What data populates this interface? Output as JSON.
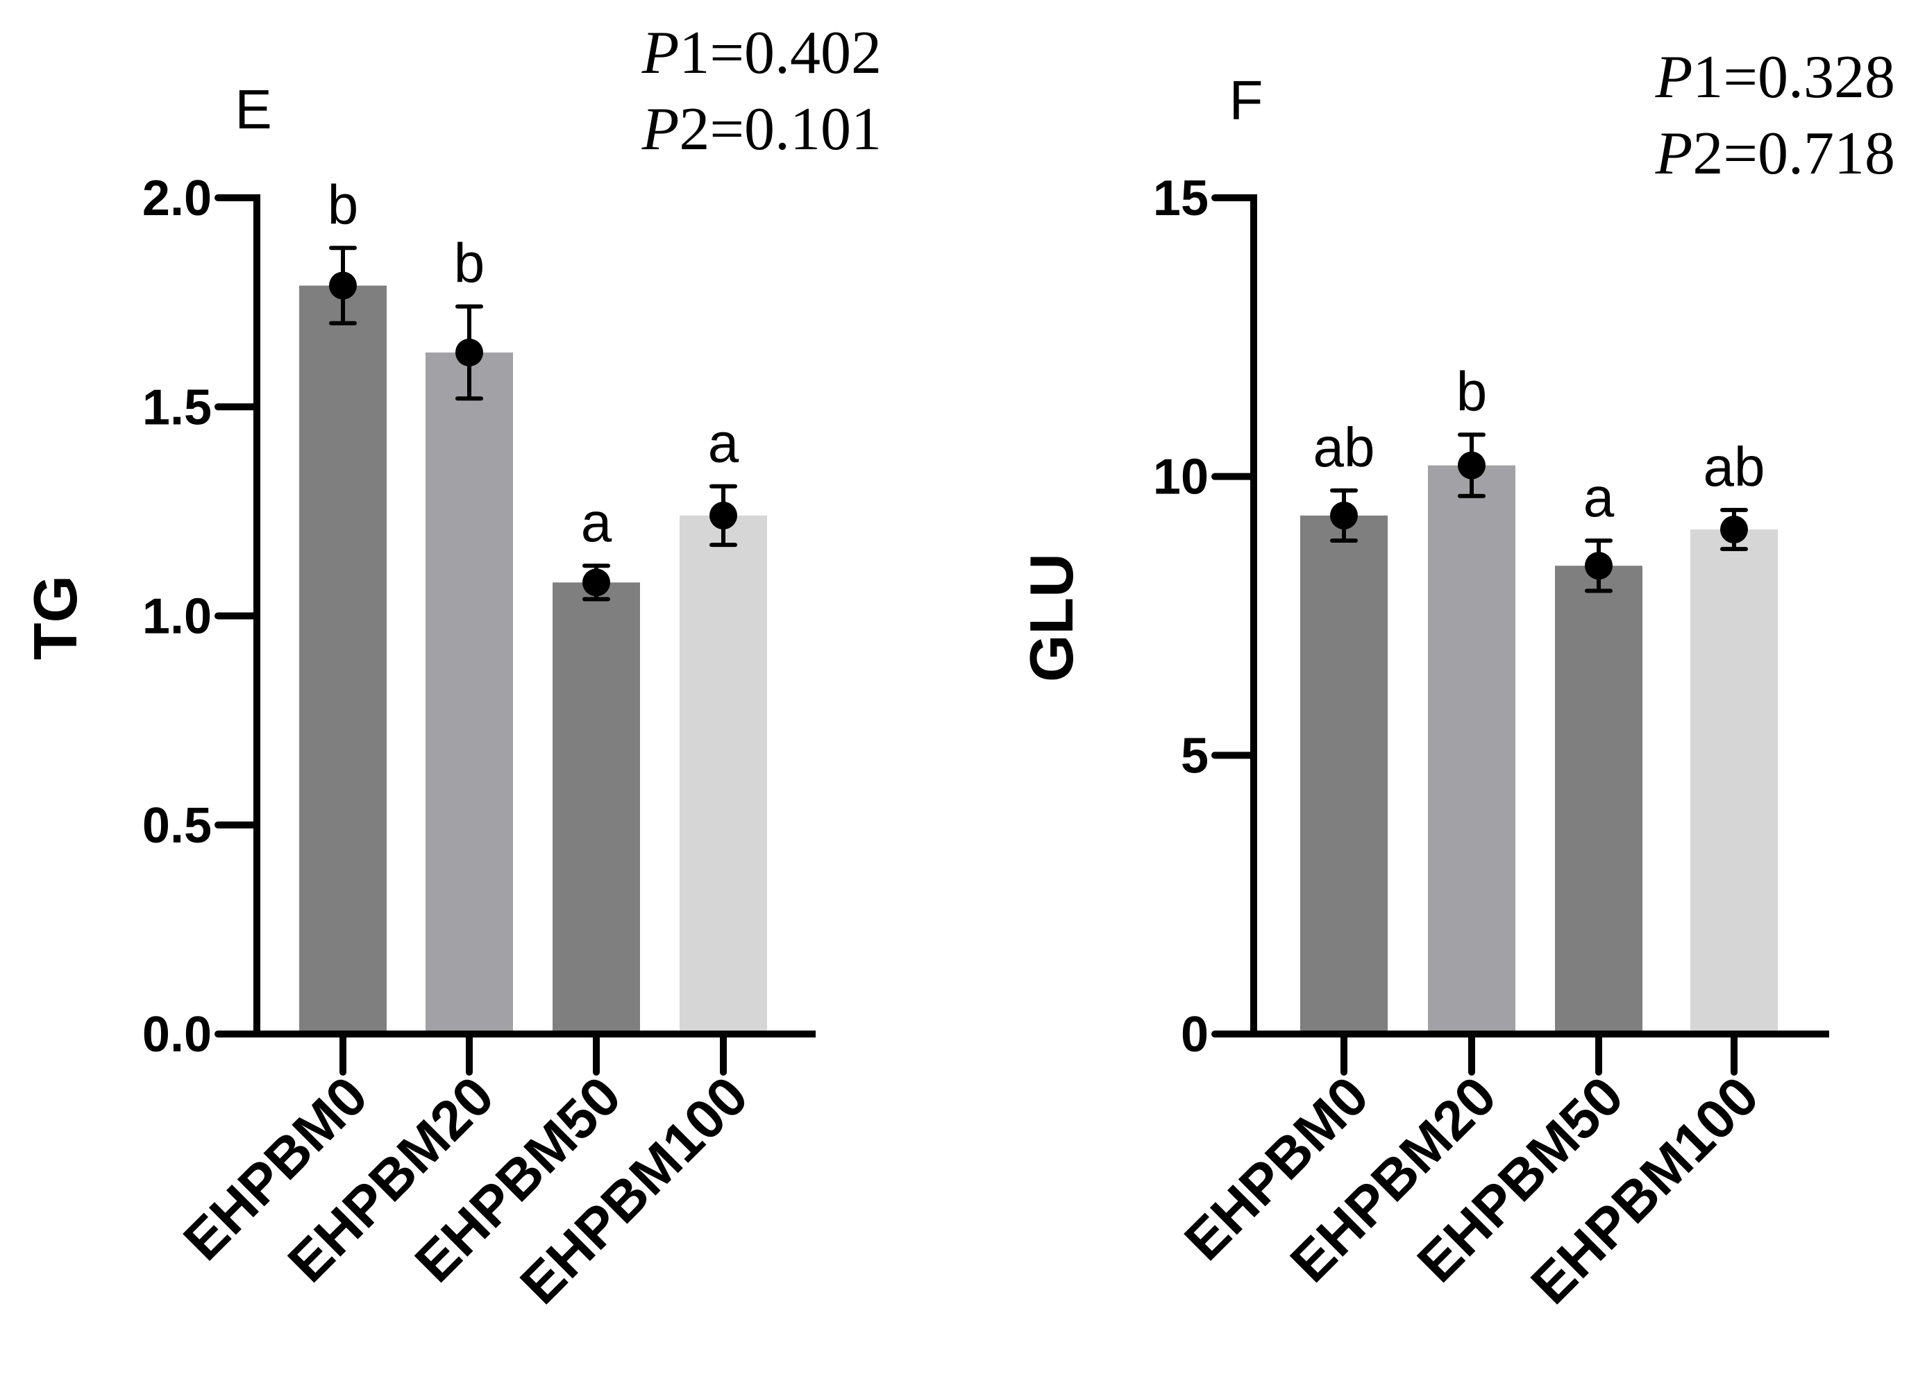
{
  "chart_data": [
    {
      "type": "bar",
      "panel": "E",
      "title": "",
      "xlabel": "",
      "ylabel": "TG",
      "ylim": [
        0,
        2.0
      ],
      "yticks": [
        0.0,
        0.5,
        1.0,
        1.5,
        2.0
      ],
      "ytick_labels": [
        "0.0",
        "0.5",
        "1.0",
        "1.5",
        "2.0"
      ],
      "categories": [
        "EHPBM0",
        "EHPBM20",
        "EHPBM50",
        "EHPBM100"
      ],
      "values": [
        1.79,
        1.63,
        1.08,
        1.24
      ],
      "errors": [
        0.09,
        0.11,
        0.04,
        0.07
      ],
      "bar_colors": [
        "#7f7f7f",
        "#a2a2a6",
        "#7f7f7f",
        "#d6d6d6"
      ],
      "significance": [
        "b",
        "b",
        "a",
        "a"
      ],
      "p_values": [
        {
          "label": "P",
          "num": "1",
          "value": "=0.402"
        },
        {
          "label": "P",
          "num": "2",
          "value": "=0.101"
        }
      ]
    },
    {
      "type": "bar",
      "panel": "F",
      "title": "",
      "xlabel": "",
      "ylabel": "GLU",
      "ylim": [
        0,
        15
      ],
      "yticks": [
        0,
        5,
        10,
        15
      ],
      "ytick_labels": [
        "0",
        "5",
        "10",
        "15"
      ],
      "categories": [
        "EHPBM0",
        "EHPBM20",
        "EHPBM50",
        "EHPBM100"
      ],
      "values": [
        9.3,
        10.2,
        8.4,
        9.05
      ],
      "errors": [
        0.45,
        0.55,
        0.45,
        0.35
      ],
      "bar_colors": [
        "#7f7f7f",
        "#a2a2a6",
        "#7f7f7f",
        "#d6d6d6"
      ],
      "significance": [
        "ab",
        "b",
        "a",
        "ab"
      ],
      "p_values": [
        {
          "label": "P",
          "num": "1",
          "value": "=0.328"
        },
        {
          "label": "P",
          "num": "2",
          "value": "=0.718"
        }
      ]
    }
  ]
}
